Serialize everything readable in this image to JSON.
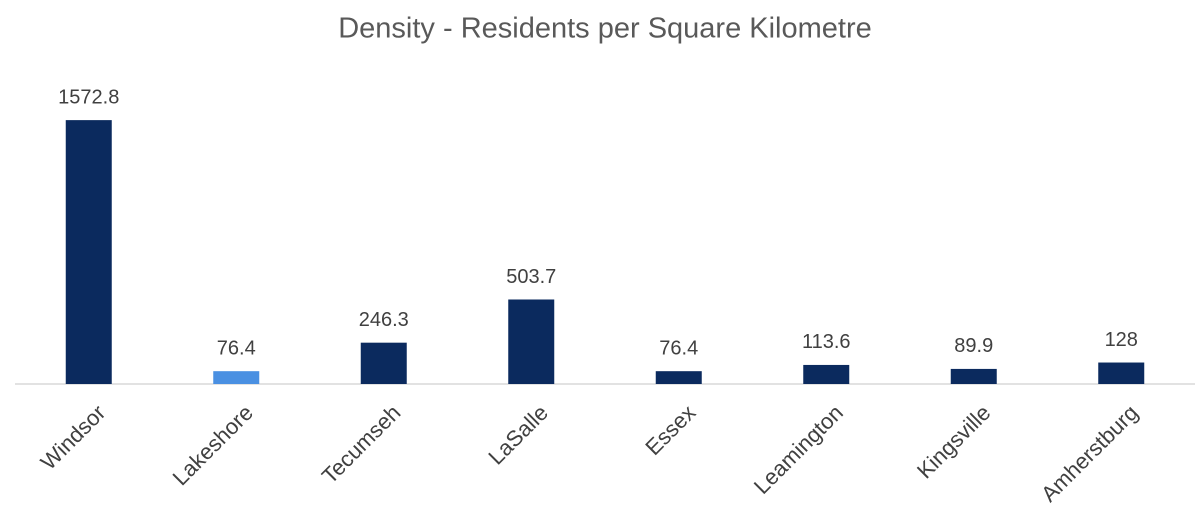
{
  "chart_data": {
    "type": "bar",
    "title": "Density - Residents per Square Kilometre",
    "categories": [
      "Windsor",
      "Lakeshore",
      "Tecumseh",
      "LaSalle",
      "Essex",
      "Leamington",
      "Kingsville",
      "Amherstburg"
    ],
    "values": [
      1572.8,
      76.4,
      246.3,
      503.7,
      76.4,
      113.6,
      89.9,
      128
    ],
    "colors": [
      "#0b2a5e",
      "#4a90e2",
      "#0b2a5e",
      "#0b2a5e",
      "#0b2a5e",
      "#0b2a5e",
      "#0b2a5e",
      "#0b2a5e"
    ],
    "ylim": [
      0,
      1800
    ]
  }
}
